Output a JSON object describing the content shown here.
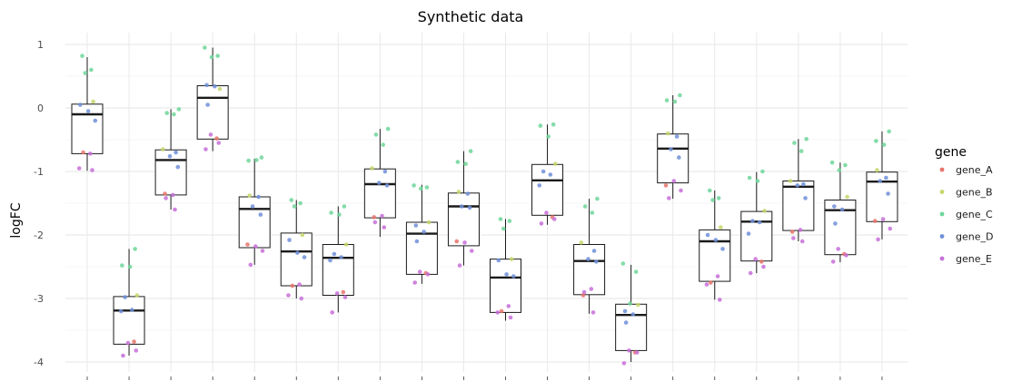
{
  "chart_data": {
    "type": "box",
    "title": "Synthetic data",
    "xlabel": "",
    "ylabel": "logFC",
    "ylim": [
      -4.3,
      1.2
    ],
    "yticks": [
      -4,
      -3,
      -2,
      -1,
      0,
      1
    ],
    "grid": true,
    "legend": {
      "title": "gene",
      "placement": "right"
    },
    "series_colors": {
      "gene_A": "#e8736b",
      "gene_B": "#c7d66a",
      "gene_C": "#6ed69a",
      "gene_D": "#6f8fd8",
      "gene_E": "#c76fd8"
    },
    "genes": [
      "gene_A",
      "gene_B",
      "gene_C",
      "gene_D",
      "gene_E"
    ],
    "boxes": [
      {
        "q1": -0.72,
        "median": -0.1,
        "q3": 0.06,
        "min": -0.99,
        "max": 0.8
      },
      {
        "q1": -3.72,
        "median": -3.19,
        "q3": -2.97,
        "min": -3.9,
        "max": -2.22
      },
      {
        "q1": -1.37,
        "median": -0.82,
        "q3": -0.66,
        "min": -1.6,
        "max": -0.02
      },
      {
        "q1": -0.49,
        "median": 0.16,
        "q3": 0.35,
        "min": -0.68,
        "max": 0.95
      },
      {
        "q1": -2.2,
        "median": -1.59,
        "q3": -1.4,
        "min": -2.47,
        "max": -0.8
      },
      {
        "q1": -2.8,
        "median": -2.26,
        "q3": -1.97,
        "min": -3.0,
        "max": -1.45
      },
      {
        "q1": -2.95,
        "median": -2.36,
        "q3": -2.15,
        "min": -3.22,
        "max": -1.55
      },
      {
        "q1": -1.73,
        "median": -1.2,
        "q3": -0.96,
        "min": -2.03,
        "max": -0.33
      },
      {
        "q1": -2.62,
        "median": -1.98,
        "q3": -1.8,
        "min": -2.77,
        "max": -1.21
      },
      {
        "q1": -2.17,
        "median": -1.55,
        "q3": -1.34,
        "min": -2.48,
        "max": -0.68
      },
      {
        "q1": -3.22,
        "median": -2.67,
        "q3": -2.38,
        "min": -3.35,
        "max": -1.75
      },
      {
        "q1": -1.69,
        "median": -1.14,
        "q3": -0.89,
        "min": -1.84,
        "max": -0.26
      },
      {
        "q1": -2.94,
        "median": -2.41,
        "q3": -2.15,
        "min": -3.24,
        "max": -1.43
      },
      {
        "q1": -3.82,
        "median": -3.26,
        "q3": -3.09,
        "min": -4.0,
        "max": -2.47
      },
      {
        "q1": -1.18,
        "median": -0.64,
        "q3": -0.41,
        "min": -1.43,
        "max": 0.2
      },
      {
        "q1": -2.73,
        "median": -2.1,
        "q3": -1.92,
        "min": -3.02,
        "max": -1.3
      },
      {
        "q1": -2.41,
        "median": -1.79,
        "q3": -1.63,
        "min": -2.6,
        "max": -1.01
      },
      {
        "q1": -1.93,
        "median": -1.24,
        "q3": -1.15,
        "min": -2.1,
        "max": -0.49
      },
      {
        "q1": -2.31,
        "median": -1.61,
        "q3": -1.45,
        "min": -2.43,
        "max": -0.86
      },
      {
        "q1": -1.79,
        "median": -1.16,
        "q3": -1.01,
        "min": -2.07,
        "max": -0.37
      }
    ],
    "points": [
      [
        [
          "gene_C",
          0.82
        ],
        [
          "gene_C",
          0.6
        ],
        [
          "gene_C",
          0.55
        ],
        [
          "gene_B",
          0.1
        ],
        [
          "gene_D",
          0.05
        ],
        [
          "gene_D",
          -0.05
        ],
        [
          "gene_D",
          -0.2
        ],
        [
          "gene_A",
          -0.7
        ],
        [
          "gene_E",
          -0.72
        ],
        [
          "gene_E",
          -0.95
        ],
        [
          "gene_E",
          -0.98
        ]
      ],
      [
        [
          "gene_C",
          -2.22
        ],
        [
          "gene_C",
          -2.48
        ],
        [
          "gene_C",
          -2.5
        ],
        [
          "gene_B",
          -2.95
        ],
        [
          "gene_D",
          -2.98
        ],
        [
          "gene_D",
          -3.18
        ],
        [
          "gene_D",
          -3.2
        ],
        [
          "gene_A",
          -3.68
        ],
        [
          "gene_E",
          -3.7
        ],
        [
          "gene_E",
          -3.82
        ],
        [
          "gene_E",
          -3.9
        ]
      ],
      [
        [
          "gene_C",
          -0.02
        ],
        [
          "gene_C",
          -0.08
        ],
        [
          "gene_C",
          -0.1
        ],
        [
          "gene_B",
          -0.65
        ],
        [
          "gene_D",
          -0.7
        ],
        [
          "gene_D",
          -0.76
        ],
        [
          "gene_D",
          -0.93
        ],
        [
          "gene_A",
          -1.35
        ],
        [
          "gene_E",
          -1.37
        ],
        [
          "gene_E",
          -1.42
        ],
        [
          "gene_E",
          -1.6
        ]
      ],
      [
        [
          "gene_C",
          0.95
        ],
        [
          "gene_C",
          0.82
        ],
        [
          "gene_C",
          0.8
        ],
        [
          "gene_B",
          0.3
        ],
        [
          "gene_D",
          0.36
        ],
        [
          "gene_D",
          0.34
        ],
        [
          "gene_D",
          0.05
        ],
        [
          "gene_A",
          -0.48
        ],
        [
          "gene_E",
          -0.42
        ],
        [
          "gene_E",
          -0.55
        ],
        [
          "gene_E",
          -0.65
        ]
      ],
      [
        [
          "gene_C",
          -0.78
        ],
        [
          "gene_C",
          -0.83
        ],
        [
          "gene_C",
          -0.82
        ],
        [
          "gene_B",
          -1.38
        ],
        [
          "gene_D",
          -1.4
        ],
        [
          "gene_D",
          -1.55
        ],
        [
          "gene_D",
          -1.68
        ],
        [
          "gene_A",
          -2.15
        ],
        [
          "gene_E",
          -2.18
        ],
        [
          "gene_E",
          -2.25
        ],
        [
          "gene_E",
          -2.47
        ]
      ],
      [
        [
          "gene_C",
          -1.45
        ],
        [
          "gene_C",
          -1.5
        ],
        [
          "gene_C",
          -1.55
        ],
        [
          "gene_B",
          -2.0
        ],
        [
          "gene_D",
          -2.08
        ],
        [
          "gene_D",
          -2.28
        ],
        [
          "gene_D",
          -2.35
        ],
        [
          "gene_A",
          -2.8
        ],
        [
          "gene_E",
          -2.78
        ],
        [
          "gene_E",
          -2.95
        ],
        [
          "gene_E",
          -3.0
        ]
      ],
      [
        [
          "gene_C",
          -1.55
        ],
        [
          "gene_C",
          -1.65
        ],
        [
          "gene_C",
          -1.68
        ],
        [
          "gene_B",
          -2.15
        ],
        [
          "gene_D",
          -2.3
        ],
        [
          "gene_D",
          -2.35
        ],
        [
          "gene_D",
          -2.4
        ],
        [
          "gene_A",
          -2.9
        ],
        [
          "gene_E",
          -2.92
        ],
        [
          "gene_E",
          -2.98
        ],
        [
          "gene_E",
          -3.22
        ]
      ],
      [
        [
          "gene_C",
          -0.33
        ],
        [
          "gene_C",
          -0.42
        ],
        [
          "gene_C",
          -0.58
        ],
        [
          "gene_B",
          -0.95
        ],
        [
          "gene_D",
          -1.0
        ],
        [
          "gene_D",
          -1.18
        ],
        [
          "gene_D",
          -1.22
        ],
        [
          "gene_A",
          -1.72
        ],
        [
          "gene_E",
          -1.7
        ],
        [
          "gene_E",
          -1.8
        ],
        [
          "gene_E",
          -1.88
        ]
      ],
      [
        [
          "gene_C",
          -1.22
        ],
        [
          "gene_C",
          -1.25
        ],
        [
          "gene_C",
          -1.27
        ],
        [
          "gene_B",
          -1.8
        ],
        [
          "gene_D",
          -1.85
        ],
        [
          "gene_D",
          -1.95
        ],
        [
          "gene_D",
          -2.1
        ],
        [
          "gene_A",
          -2.6
        ],
        [
          "gene_E",
          -2.58
        ],
        [
          "gene_E",
          -2.62
        ],
        [
          "gene_E",
          -2.75
        ]
      ],
      [
        [
          "gene_C",
          -0.68
        ],
        [
          "gene_C",
          -0.85
        ],
        [
          "gene_C",
          -0.88
        ],
        [
          "gene_B",
          -1.32
        ],
        [
          "gene_D",
          -1.35
        ],
        [
          "gene_D",
          -1.55
        ],
        [
          "gene_D",
          -1.57
        ],
        [
          "gene_A",
          -2.1
        ],
        [
          "gene_E",
          -2.12
        ],
        [
          "gene_E",
          -2.25
        ],
        [
          "gene_E",
          -2.48
        ]
      ],
      [
        [
          "gene_C",
          -1.75
        ],
        [
          "gene_C",
          -1.78
        ],
        [
          "gene_C",
          -1.9
        ],
        [
          "gene_B",
          -2.38
        ],
        [
          "gene_D",
          -2.4
        ],
        [
          "gene_D",
          -2.62
        ],
        [
          "gene_D",
          -2.65
        ],
        [
          "gene_A",
          -3.2
        ],
        [
          "gene_E",
          -3.12
        ],
        [
          "gene_E",
          -3.22
        ],
        [
          "gene_E",
          -3.3
        ]
      ],
      [
        [
          "gene_C",
          -0.26
        ],
        [
          "gene_C",
          -0.28
        ],
        [
          "gene_C",
          -0.45
        ],
        [
          "gene_B",
          -0.88
        ],
        [
          "gene_D",
          -1.0
        ],
        [
          "gene_D",
          -1.05
        ],
        [
          "gene_D",
          -1.22
        ],
        [
          "gene_A",
          -1.72
        ],
        [
          "gene_E",
          -1.65
        ],
        [
          "gene_E",
          -1.75
        ],
        [
          "gene_E",
          -1.82
        ]
      ],
      [
        [
          "gene_C",
          -1.43
        ],
        [
          "gene_C",
          -1.55
        ],
        [
          "gene_C",
          -1.65
        ],
        [
          "gene_B",
          -2.12
        ],
        [
          "gene_D",
          -2.25
        ],
        [
          "gene_D",
          -2.38
        ],
        [
          "gene_D",
          -2.42
        ],
        [
          "gene_A",
          -2.95
        ],
        [
          "gene_E",
          -2.85
        ],
        [
          "gene_E",
          -2.9
        ],
        [
          "gene_E",
          -3.22
        ]
      ],
      [
        [
          "gene_C",
          -2.45
        ],
        [
          "gene_C",
          -2.58
        ],
        [
          "gene_C",
          -3.08
        ],
        [
          "gene_B",
          -3.1
        ],
        [
          "gene_D",
          -3.2
        ],
        [
          "gene_D",
          -3.25
        ],
        [
          "gene_D",
          -3.38
        ],
        [
          "gene_A",
          -3.85
        ],
        [
          "gene_E",
          -3.82
        ],
        [
          "gene_E",
          -3.85
        ],
        [
          "gene_E",
          -4.02
        ]
      ],
      [
        [
          "gene_C",
          0.2
        ],
        [
          "gene_C",
          0.12
        ],
        [
          "gene_C",
          0.1
        ],
        [
          "gene_B",
          -0.4
        ],
        [
          "gene_D",
          -0.45
        ],
        [
          "gene_D",
          -0.65
        ],
        [
          "gene_D",
          -0.78
        ],
        [
          "gene_A",
          -1.22
        ],
        [
          "gene_E",
          -1.15
        ],
        [
          "gene_E",
          -1.3
        ],
        [
          "gene_E",
          -1.42
        ]
      ],
      [
        [
          "gene_C",
          -1.3
        ],
        [
          "gene_C",
          -1.42
        ],
        [
          "gene_C",
          -1.45
        ],
        [
          "gene_B",
          -1.88
        ],
        [
          "gene_D",
          -2.0
        ],
        [
          "gene_D",
          -2.08
        ],
        [
          "gene_D",
          -2.22
        ],
        [
          "gene_A",
          -2.75
        ],
        [
          "gene_E",
          -2.65
        ],
        [
          "gene_E",
          -2.78
        ],
        [
          "gene_E",
          -3.02
        ]
      ],
      [
        [
          "gene_C",
          -1.0
        ],
        [
          "gene_C",
          -1.1
        ],
        [
          "gene_C",
          -1.15
        ],
        [
          "gene_B",
          -1.62
        ],
        [
          "gene_D",
          -1.78
        ],
        [
          "gene_D",
          -1.8
        ],
        [
          "gene_D",
          -1.98
        ],
        [
          "gene_A",
          -2.42
        ],
        [
          "gene_E",
          -2.38
        ],
        [
          "gene_E",
          -2.5
        ],
        [
          "gene_E",
          -2.6
        ]
      ],
      [
        [
          "gene_C",
          -0.49
        ],
        [
          "gene_C",
          -0.55
        ],
        [
          "gene_C",
          -0.68
        ],
        [
          "gene_B",
          -1.15
        ],
        [
          "gene_D",
          -1.2
        ],
        [
          "gene_D",
          -1.22
        ],
        [
          "gene_D",
          -1.42
        ],
        [
          "gene_A",
          -1.95
        ],
        [
          "gene_E",
          -1.92
        ],
        [
          "gene_E",
          -2.05
        ],
        [
          "gene_E",
          -2.1
        ]
      ],
      [
        [
          "gene_C",
          -0.86
        ],
        [
          "gene_C",
          -0.9
        ],
        [
          "gene_C",
          -0.98
        ],
        [
          "gene_B",
          -1.4
        ],
        [
          "gene_D",
          -1.55
        ],
        [
          "gene_D",
          -1.6
        ],
        [
          "gene_D",
          -1.82
        ],
        [
          "gene_A",
          -2.3
        ],
        [
          "gene_E",
          -2.22
        ],
        [
          "gene_E",
          -2.32
        ],
        [
          "gene_E",
          -2.42
        ]
      ],
      [
        [
          "gene_C",
          -0.37
        ],
        [
          "gene_C",
          -0.52
        ],
        [
          "gene_C",
          -0.58
        ],
        [
          "gene_B",
          -0.98
        ],
        [
          "gene_D",
          -1.1
        ],
        [
          "gene_D",
          -1.15
        ],
        [
          "gene_D",
          -1.35
        ],
        [
          "gene_A",
          -1.78
        ],
        [
          "gene_E",
          -1.75
        ],
        [
          "gene_E",
          -1.9
        ],
        [
          "gene_E",
          -2.07
        ]
      ]
    ]
  }
}
